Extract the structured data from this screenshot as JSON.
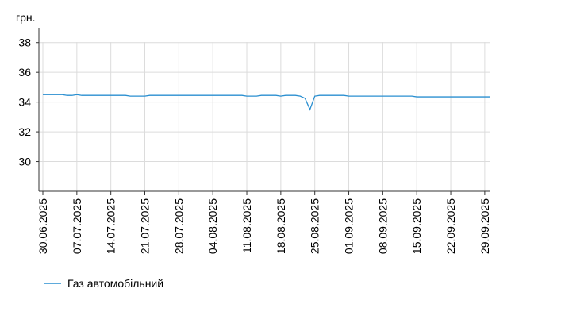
{
  "chart_data": {
    "type": "line",
    "y_label": "грн.",
    "x": [
      "30.06.2025",
      "01.07.2025",
      "02.07.2025",
      "03.07.2025",
      "04.07.2025",
      "05.07.2025",
      "06.07.2025",
      "07.07.2025",
      "08.07.2025",
      "09.07.2025",
      "10.07.2025",
      "11.07.2025",
      "12.07.2025",
      "13.07.2025",
      "14.07.2025",
      "15.07.2025",
      "16.07.2025",
      "17.07.2025",
      "18.07.2025",
      "19.07.2025",
      "20.07.2025",
      "21.07.2025",
      "22.07.2025",
      "23.07.2025",
      "24.07.2025",
      "25.07.2025",
      "26.07.2025",
      "27.07.2025",
      "28.07.2025",
      "29.07.2025",
      "30.07.2025",
      "31.07.2025",
      "01.08.2025",
      "02.08.2025",
      "03.08.2025",
      "04.08.2025",
      "05.08.2025",
      "06.08.2025",
      "07.08.2025",
      "08.08.2025",
      "09.08.2025",
      "10.08.2025",
      "11.08.2025",
      "12.08.2025",
      "13.08.2025",
      "14.08.2025",
      "15.08.2025",
      "16.08.2025",
      "17.08.2025",
      "18.08.2025",
      "19.08.2025",
      "20.08.2025",
      "21.08.2025",
      "22.08.2025",
      "23.08.2025",
      "24.08.2025",
      "25.08.2025",
      "26.08.2025",
      "27.08.2025",
      "28.08.2025",
      "29.08.2025",
      "30.08.2025",
      "31.08.2025",
      "01.09.2025",
      "02.09.2025",
      "03.09.2025",
      "04.09.2025",
      "05.09.2025",
      "06.09.2025",
      "07.09.2025",
      "08.09.2025",
      "09.09.2025",
      "10.09.2025",
      "11.09.2025",
      "12.09.2025",
      "13.09.2025",
      "14.09.2025",
      "15.09.2025",
      "16.09.2025",
      "17.09.2025",
      "18.09.2025",
      "19.09.2025",
      "20.09.2025",
      "21.09.2025",
      "22.09.2025",
      "23.09.2025",
      "24.09.2025",
      "25.09.2025",
      "26.09.2025",
      "27.09.2025",
      "28.09.2025",
      "29.09.2025",
      "30.09.2025"
    ],
    "series": [
      {
        "name": "Газ автомобільний",
        "color": "#2a8fd0",
        "values": [
          34.5,
          34.5,
          34.5,
          34.5,
          34.5,
          34.45,
          34.45,
          34.5,
          34.45,
          34.45,
          34.45,
          34.45,
          34.45,
          34.45,
          34.45,
          34.45,
          34.45,
          34.45,
          34.4,
          34.4,
          34.4,
          34.4,
          34.45,
          34.45,
          34.45,
          34.45,
          34.45,
          34.45,
          34.45,
          34.45,
          34.45,
          34.45,
          34.45,
          34.45,
          34.45,
          34.45,
          34.45,
          34.45,
          34.45,
          34.45,
          34.45,
          34.45,
          34.4,
          34.4,
          34.4,
          34.45,
          34.45,
          34.45,
          34.45,
          34.4,
          34.45,
          34.45,
          34.45,
          34.4,
          34.25,
          33.5,
          34.4,
          34.45,
          34.45,
          34.45,
          34.45,
          34.45,
          34.45,
          34.4,
          34.4,
          34.4,
          34.4,
          34.4,
          34.4,
          34.4,
          34.4,
          34.4,
          34.4,
          34.4,
          34.4,
          34.4,
          34.4,
          34.35,
          34.35,
          34.35,
          34.35,
          34.35,
          34.35,
          34.35,
          34.35,
          34.35,
          34.35,
          34.35,
          34.35,
          34.35,
          34.35,
          34.35,
          34.35
        ]
      }
    ],
    "xticks": [
      "30.06.2025",
      "07.07.2025",
      "14.07.2025",
      "21.07.2025",
      "28.07.2025",
      "04.08.2025",
      "11.08.2025",
      "18.08.2025",
      "25.08.2025",
      "01.09.2025",
      "08.09.2025",
      "15.09.2025",
      "22.09.2025",
      "29.09.2025"
    ],
    "ylim": [
      28,
      39
    ],
    "yticks": [
      30,
      32,
      34,
      36,
      38
    ],
    "grid": true
  }
}
